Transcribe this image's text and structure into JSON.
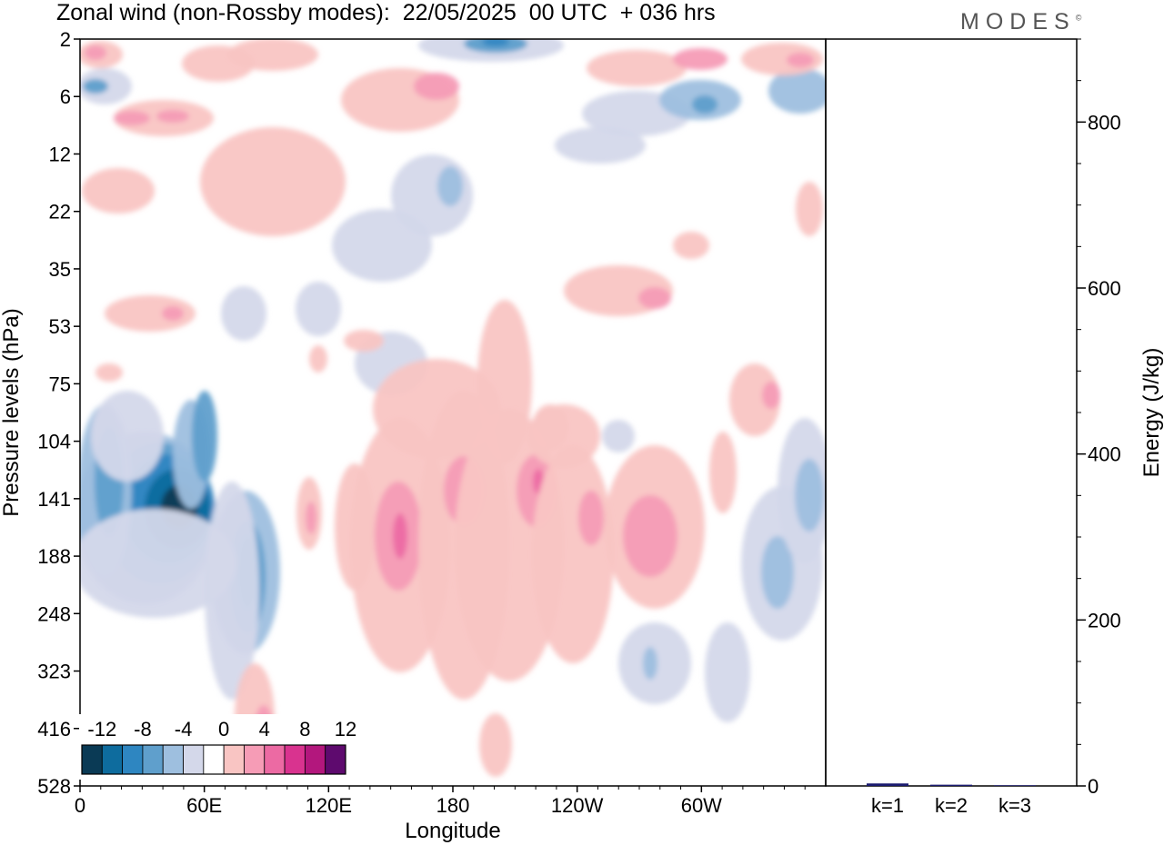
{
  "header": {
    "title": "Zonal wind (non-Rossby modes):  22/05/2025  00 UTC  + 036 hrs",
    "logo": "MODES",
    "logo_mark": "©"
  },
  "chart_data": [
    {
      "type": "heatmap",
      "title": "Zonal wind (non-Rossby modes):  22/05/2025  00 UTC  + 036 hrs",
      "xlabel": "Longitude",
      "ylabel": "Pressure levels (hPa)",
      "x_ticks": [
        "0",
        "60E",
        "120E",
        "180",
        "120W",
        "60W"
      ],
      "x_tick_values": [
        0,
        60,
        120,
        180,
        240,
        300
      ],
      "xlim": [
        0,
        360
      ],
      "y_ticks": [
        "2",
        "6",
        "12",
        "22",
        "35",
        "53",
        "75",
        "104",
        "141",
        "188",
        "248",
        "323",
        "416",
        "528"
      ],
      "colorbar": {
        "labels": [
          "-12",
          "-8",
          "-4",
          "0",
          "4",
          "8",
          "12"
        ],
        "levels": [
          -14,
          -12,
          -10,
          -8,
          -6,
          -4,
          -2,
          2,
          4,
          6,
          8,
          10,
          12,
          14
        ],
        "colors": [
          "#0a3a55",
          "#0e6c9e",
          "#2e86c1",
          "#5f9fcc",
          "#9ebfdf",
          "#d4d8ea",
          "#ffffff",
          "#f9c5c3",
          "#f69cb6",
          "#ec6aa3",
          "#d9338f",
          "#b3177d",
          "#5e0a6e"
        ]
      },
      "features": [
        {
          "center_lon": 46,
          "center_level": "141",
          "min_value": -14
        },
        {
          "center_lon": 78,
          "center_level": "188",
          "min_value": -8
        },
        {
          "center_lon": 196,
          "center_level": "2",
          "min_value": -8
        },
        {
          "center_lon": 150,
          "center_level": "141",
          "max_value": 10
        },
        {
          "center_lon": 222,
          "center_level": "141",
          "max_value": 10
        },
        {
          "center_lon": 275,
          "center_level": "188",
          "max_value": 8
        }
      ]
    },
    {
      "type": "bar",
      "categories": [
        "k=1",
        "k=2",
        "k=3"
      ],
      "values": [
        3,
        1.5,
        0.8
      ],
      "ylabel": "Energy (J/kg)",
      "ylim": [
        0,
        900
      ],
      "y_ticks": [
        0,
        200,
        400,
        600,
        800
      ],
      "bar_color": "#1a1a6e"
    }
  ]
}
